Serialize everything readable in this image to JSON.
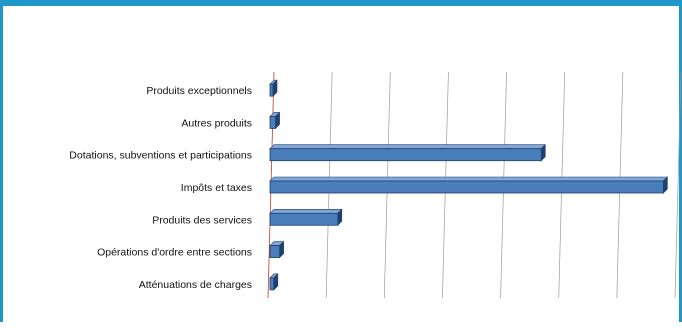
{
  "chart_data": {
    "type": "bar",
    "orientation": "horizontal",
    "style": "3d",
    "categories": [
      "Produits exceptionnels",
      "Autres produits",
      "Dotations, subventions et participations",
      "Impôts et taxes",
      "Produits des services",
      "Opérations d'ordre entre sections",
      "Atténuations de charges"
    ],
    "values": [
      0.3,
      1.3,
      47,
      68,
      12,
      2,
      1
    ],
    "xlim": [
      0,
      70
    ],
    "grid": true,
    "legend": "none",
    "title": "",
    "xlabel": "",
    "ylabel": ""
  },
  "colors": {
    "frame": "#1f97c9",
    "bar": "#4a7ebb",
    "bar_edge": "#1f3f6e",
    "bar_top": "#7fa6d6",
    "grid": "#9a9a9a",
    "label": "#111111"
  }
}
